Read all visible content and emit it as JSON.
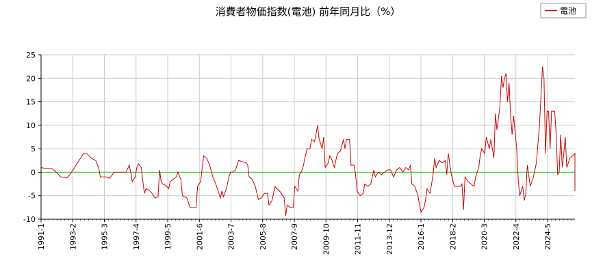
{
  "chart_data": {
    "type": "line",
    "title": "消費者物価指数(電池) 前年同月比（%）",
    "xlabel": "",
    "ylabel": "",
    "ylim": [
      -10,
      25
    ],
    "yticks": [
      25,
      20,
      15,
      10,
      5,
      0,
      -5,
      -10
    ],
    "xtick_labels": [
      "1991-1",
      "1993-2",
      "1995-3",
      "1997-4",
      "1999-5",
      "2001-6",
      "2003-7",
      "2005-8",
      "2007-9",
      "2009-10",
      "2011-11",
      "2013-12",
      "2016-1",
      "2018-2",
      "2020-3",
      "2022-4",
      "2024-5"
    ],
    "grid": true,
    "legend": "top-right",
    "reference_line": {
      "y": 0,
      "color": "#00cc00"
    },
    "series": [
      {
        "name": "電池",
        "color": "#cc0000",
        "points": [
          [
            1991.0,
            1.0
          ],
          [
            1991.3,
            0.8
          ],
          [
            1991.7,
            0.8
          ],
          [
            1992.0,
            0.0
          ],
          [
            1992.3,
            -1.0
          ],
          [
            1992.7,
            -1.2
          ],
          [
            1992.9,
            -0.5
          ],
          [
            1993.2,
            1.0
          ],
          [
            1993.5,
            2.5
          ],
          [
            1993.8,
            4.0
          ],
          [
            1994.0,
            4.0
          ],
          [
            1994.3,
            3.0
          ],
          [
            1994.6,
            2.5
          ],
          [
            1994.8,
            0.8
          ],
          [
            1994.9,
            -1.0
          ],
          [
            1995.3,
            -1.0
          ],
          [
            1995.5,
            -1.3
          ],
          [
            1995.7,
            -0.5
          ],
          [
            1995.8,
            0.0
          ],
          [
            1996.0,
            0.0
          ],
          [
            1996.3,
            0.0
          ],
          [
            1996.6,
            0.0
          ],
          [
            1996.8,
            1.5
          ],
          [
            1996.9,
            0.0
          ],
          [
            1997.0,
            -2.0
          ],
          [
            1997.2,
            -1.0
          ],
          [
            1997.3,
            1.0
          ],
          [
            1997.4,
            1.8
          ],
          [
            1997.6,
            1.0
          ],
          [
            1997.7,
            -2.0
          ],
          [
            1997.8,
            -4.5
          ],
          [
            1997.9,
            -3.5
          ],
          [
            1998.1,
            -3.8
          ],
          [
            1998.3,
            -4.5
          ],
          [
            1998.5,
            -5.5
          ],
          [
            1998.7,
            -5.2
          ],
          [
            1998.8,
            0.5
          ],
          [
            1998.9,
            -2.0
          ],
          [
            1999.0,
            -2.5
          ],
          [
            1999.2,
            -2.8
          ],
          [
            1999.4,
            -3.5
          ],
          [
            1999.5,
            -2.0
          ],
          [
            1999.7,
            -1.5
          ],
          [
            1999.9,
            -1.0
          ],
          [
            2000.0,
            0.0
          ],
          [
            2000.2,
            -1.5
          ],
          [
            2000.3,
            -5.0
          ],
          [
            2000.6,
            -5.5
          ],
          [
            2000.8,
            -7.5
          ],
          [
            2001.0,
            -7.5
          ],
          [
            2001.2,
            -7.5
          ],
          [
            2001.3,
            -3.0
          ],
          [
            2001.5,
            -2.0
          ],
          [
            2001.7,
            3.5
          ],
          [
            2001.9,
            3.0
          ],
          [
            2002.1,
            1.5
          ],
          [
            2002.3,
            -1.0
          ],
          [
            2002.5,
            -2.5
          ],
          [
            2002.6,
            -3.5
          ],
          [
            2002.8,
            -5.5
          ],
          [
            2002.9,
            -4.0
          ],
          [
            2003.0,
            -5.2
          ],
          [
            2003.2,
            -3.5
          ],
          [
            2003.4,
            -0.5
          ],
          [
            2003.5,
            0.0
          ],
          [
            2003.6,
            0.0
          ],
          [
            2003.8,
            0.5
          ],
          [
            2004.0,
            2.5
          ],
          [
            2004.2,
            2.3
          ],
          [
            2004.5,
            2.0
          ],
          [
            2004.6,
            1.5
          ],
          [
            2004.7,
            -1.0
          ],
          [
            2004.9,
            -1.5
          ],
          [
            2005.1,
            -3.0
          ],
          [
            2005.3,
            -5.8
          ],
          [
            2005.5,
            -5.5
          ],
          [
            2005.7,
            -4.5
          ],
          [
            2005.9,
            -4.5
          ],
          [
            2006.0,
            -7.0
          ],
          [
            2006.2,
            -6.0
          ],
          [
            2006.4,
            -3.0
          ],
          [
            2006.5,
            -3.5
          ],
          [
            2006.7,
            -4.0
          ],
          [
            2006.9,
            -5.0
          ],
          [
            2007.0,
            -5.5
          ],
          [
            2007.1,
            -9.3
          ],
          [
            2007.2,
            -7.0
          ],
          [
            2007.4,
            -7.5
          ],
          [
            2007.6,
            -7.5
          ],
          [
            2007.7,
            -3.0
          ],
          [
            2007.9,
            -4.0
          ],
          [
            2008.0,
            -0.5
          ],
          [
            2008.2,
            0.5
          ],
          [
            2008.4,
            3.5
          ],
          [
            2008.5,
            5.0
          ],
          [
            2008.7,
            5.0
          ],
          [
            2008.8,
            7.0
          ],
          [
            2009.0,
            6.5
          ],
          [
            2009.2,
            10.0
          ],
          [
            2009.3,
            7.0
          ],
          [
            2009.5,
            5.0
          ],
          [
            2009.6,
            7.5
          ],
          [
            2009.7,
            1.0
          ],
          [
            2009.9,
            2.0
          ],
          [
            2010.0,
            3.5
          ],
          [
            2010.1,
            3.0
          ],
          [
            2010.3,
            1.0
          ],
          [
            2010.5,
            4.0
          ],
          [
            2010.7,
            4.5
          ],
          [
            2010.9,
            7.0
          ],
          [
            2011.0,
            5.0
          ],
          [
            2011.1,
            7.0
          ],
          [
            2011.3,
            7.0
          ],
          [
            2011.4,
            1.5
          ],
          [
            2011.6,
            1.5
          ],
          [
            2011.7,
            -0.5
          ],
          [
            2011.8,
            -4.0
          ],
          [
            2012.0,
            -5.0
          ],
          [
            2012.2,
            -4.5
          ],
          [
            2012.3,
            -2.5
          ],
          [
            2012.5,
            -3.0
          ],
          [
            2012.7,
            -2.5
          ],
          [
            2012.9,
            0.5
          ],
          [
            2013.0,
            -1.0
          ],
          [
            2013.2,
            0.0
          ],
          [
            2013.4,
            -0.5
          ],
          [
            2013.6,
            0.0
          ],
          [
            2013.8,
            0.5
          ],
          [
            2014.0,
            0.5
          ],
          [
            2014.2,
            -1.0
          ],
          [
            2014.4,
            0.5
          ],
          [
            2014.6,
            1.0
          ],
          [
            2014.8,
            0.0
          ],
          [
            2015.0,
            1.0
          ],
          [
            2015.2,
            0.5
          ],
          [
            2015.3,
            1.5
          ],
          [
            2015.4,
            -2.5
          ],
          [
            2015.6,
            -3.0
          ],
          [
            2015.8,
            -5.0
          ],
          [
            2016.0,
            -8.5
          ],
          [
            2016.2,
            -7.5
          ],
          [
            2016.3,
            -6.0
          ],
          [
            2016.4,
            -3.5
          ],
          [
            2016.6,
            -4.5
          ],
          [
            2016.8,
            -0.5
          ],
          [
            2016.9,
            3.0
          ],
          [
            2017.0,
            1.0
          ],
          [
            2017.2,
            2.5
          ],
          [
            2017.4,
            2.0
          ],
          [
            2017.6,
            2.5
          ],
          [
            2017.7,
            -0.5
          ],
          [
            2017.8,
            4.0
          ],
          [
            2018.0,
            -0.5
          ],
          [
            2018.2,
            -3.0
          ],
          [
            2018.4,
            -3.0
          ],
          [
            2018.6,
            -3.0
          ],
          [
            2018.7,
            -2.5
          ],
          [
            2018.8,
            -8.0
          ],
          [
            2018.9,
            -1.0
          ],
          [
            2019.1,
            -2.0
          ],
          [
            2019.3,
            -2.5
          ],
          [
            2019.5,
            -3.0
          ],
          [
            2019.6,
            -1.0
          ],
          [
            2019.8,
            1.0
          ],
          [
            2019.9,
            3.5
          ],
          [
            2020.0,
            5.0
          ],
          [
            2020.2,
            4.0
          ],
          [
            2020.3,
            7.5
          ],
          [
            2020.5,
            5.0
          ],
          [
            2020.6,
            7.0
          ],
          [
            2020.8,
            3.0
          ],
          [
            2020.9,
            12.5
          ],
          [
            2021.0,
            9.0
          ],
          [
            2021.2,
            14.0
          ],
          [
            2021.3,
            20.5
          ],
          [
            2021.4,
            18.0
          ],
          [
            2021.5,
            20.0
          ],
          [
            2021.6,
            21.0
          ],
          [
            2021.7,
            15.0
          ],
          [
            2021.8,
            19.0
          ],
          [
            2021.9,
            12.0
          ],
          [
            2022.0,
            8.0
          ],
          [
            2022.1,
            12.0
          ],
          [
            2022.3,
            5.0
          ],
          [
            2022.4,
            -1.5
          ],
          [
            2022.5,
            -5.0
          ],
          [
            2022.7,
            -3.0
          ],
          [
            2022.8,
            -6.0
          ],
          [
            2022.9,
            -4.5
          ],
          [
            2023.0,
            1.5
          ],
          [
            2023.2,
            -3.0
          ],
          [
            2023.4,
            -1.0
          ],
          [
            2023.6,
            2.0
          ],
          [
            2023.8,
            10.0
          ],
          [
            2024.0,
            22.5
          ],
          [
            2024.1,
            20.0
          ],
          [
            2024.2,
            4.0
          ],
          [
            2024.3,
            13.0
          ],
          [
            2024.4,
            13.0
          ],
          [
            2024.5,
            5.0
          ],
          [
            2024.6,
            13.0
          ],
          [
            2024.8,
            13.0
          ],
          [
            2024.9,
            8.0
          ],
          [
            2025.0,
            -0.5
          ],
          [
            2025.1,
            0.0
          ],
          [
            2025.2,
            8.0
          ],
          [
            2025.3,
            1.0
          ],
          [
            2025.4,
            4.0
          ],
          [
            2025.5,
            7.5
          ],
          [
            2025.6,
            1.0
          ],
          [
            2025.8,
            3.0
          ],
          [
            2026.0,
            3.5
          ],
          [
            2026.2,
            4.0
          ],
          [
            2026.3,
            2.0
          ],
          [
            2026.4,
            0.5
          ],
          [
            2026.5,
            -3.5
          ],
          [
            2026.6,
            -4.0
          ]
        ]
      }
    ]
  }
}
